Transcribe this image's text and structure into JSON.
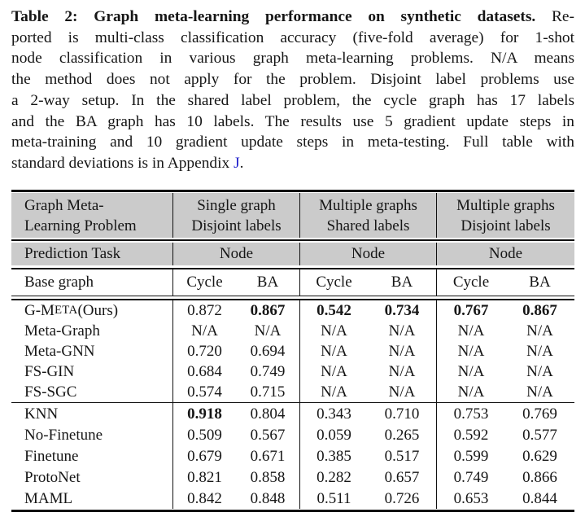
{
  "caption": {
    "line1_bold": "Table 2: Graph meta-learning performance on synthetic datasets.",
    "line1_rest": " Re-",
    "line2": "ported is multi-class classification accuracy (five-fold average) for 1-shot",
    "line3": "node classification in various graph meta-learning problems. N/A means",
    "line4": "the method does not apply for the problem. Disjoint label problems use",
    "line5": "a 2-way setup. In the shared label problem, the cycle graph has 17 labels",
    "line6": "and the BA graph has 10 labels. The results use 5 gradient update steps in",
    "line7": "meta-training and 10 gradient update steps in meta-testing. Full table with",
    "line8_prefix": "standard deviations is in Appendix ",
    "appendix_link": "J",
    "line8_suffix": "."
  },
  "table": {
    "colors": {
      "header_bg": "#cbcbcb",
      "rule": "#111111",
      "link": "#2222cc"
    },
    "header": {
      "problem_line1": "Graph Meta-",
      "problem_line2": "Learning Problem",
      "groups": [
        {
          "line1": "Single graph",
          "line2": "Disjoint labels"
        },
        {
          "line1": "Multiple graphs",
          "line2": "Shared labels"
        },
        {
          "line1": "Multiple graphs",
          "line2": "Disjoint labels"
        }
      ],
      "prediction_label": "Prediction Task",
      "prediction_values": [
        "Node",
        "Node",
        "Node"
      ],
      "base_label": "Base graph",
      "base_values": [
        "Cycle",
        "BA",
        "Cycle",
        "BA",
        "Cycle",
        "BA"
      ]
    },
    "section1": {
      "rows": [
        {
          "method_pre": "G-M",
          "method_smallcaps": "ETA",
          "method_post": " (Ours)",
          "values": [
            "0.872",
            "0.867",
            "0.542",
            "0.734",
            "0.767",
            "0.867"
          ]
        },
        {
          "method": "Meta-Graph",
          "values": [
            "N/A",
            "N/A",
            "N/A",
            "N/A",
            "N/A",
            "N/A"
          ]
        },
        {
          "method": "Meta-GNN",
          "values": [
            "0.720",
            "0.694",
            "N/A",
            "N/A",
            "N/A",
            "N/A"
          ]
        },
        {
          "method": "FS-GIN",
          "values": [
            "0.684",
            "0.749",
            "N/A",
            "N/A",
            "N/A",
            "N/A"
          ]
        },
        {
          "method": "FS-SGC",
          "values": [
            "0.574",
            "0.715",
            "N/A",
            "N/A",
            "N/A",
            "N/A"
          ]
        }
      ]
    },
    "section2": {
      "rows": [
        {
          "method": "KNN",
          "values": [
            "0.918",
            "0.804",
            "0.343",
            "0.710",
            "0.753",
            "0.769"
          ]
        },
        {
          "method": "No-Finetune",
          "values": [
            "0.509",
            "0.567",
            "0.059",
            "0.265",
            "0.592",
            "0.577"
          ]
        },
        {
          "method": "Finetune",
          "values": [
            "0.679",
            "0.671",
            "0.385",
            "0.517",
            "0.599",
            "0.629"
          ]
        },
        {
          "method": "ProtoNet",
          "values": [
            "0.821",
            "0.858",
            "0.282",
            "0.657",
            "0.749",
            "0.866"
          ]
        },
        {
          "method": "MAML",
          "values": [
            "0.842",
            "0.848",
            "0.511",
            "0.726",
            "0.653",
            "0.844"
          ]
        }
      ]
    }
  }
}
